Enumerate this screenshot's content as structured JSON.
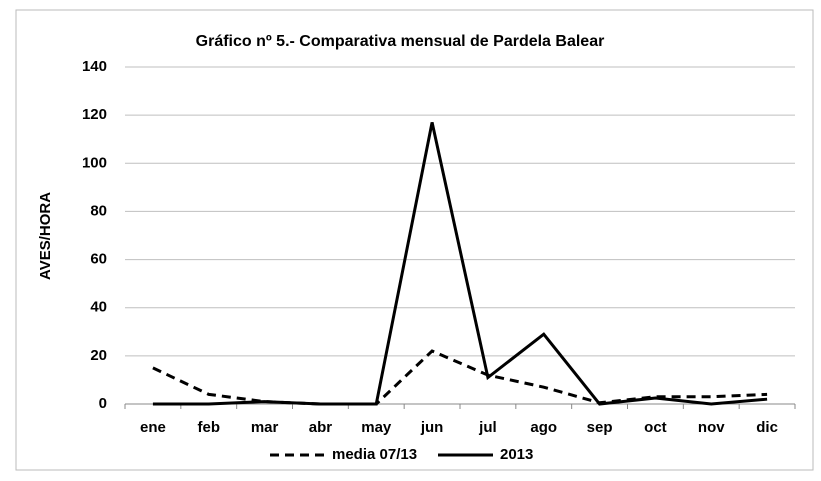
{
  "chart_data": {
    "type": "line",
    "title": "Gráfico nº 5.- Comparativa mensual de Pardela Balear",
    "ylabel": "AVES/HORA",
    "categories": [
      "ene",
      "feb",
      "mar",
      "abr",
      "may",
      "jun",
      "jul",
      "ago",
      "sep",
      "oct",
      "nov",
      "dic"
    ],
    "series": [
      {
        "name": "media 07/13",
        "color": "#000000",
        "dash": true,
        "values": [
          15,
          4,
          1,
          0,
          0,
          22,
          12,
          7,
          0.5,
          3,
          3,
          4
        ]
      },
      {
        "name": "2013",
        "color": "#000000",
        "dash": false,
        "values": [
          0,
          0,
          1,
          0,
          0,
          117,
          11,
          29,
          0,
          2.5,
          0,
          2
        ]
      }
    ],
    "ylim": [
      0,
      140
    ],
    "yticks": [
      0,
      20,
      40,
      60,
      80,
      100,
      120,
      140
    ],
    "grid": true,
    "legend": "bottom"
  }
}
